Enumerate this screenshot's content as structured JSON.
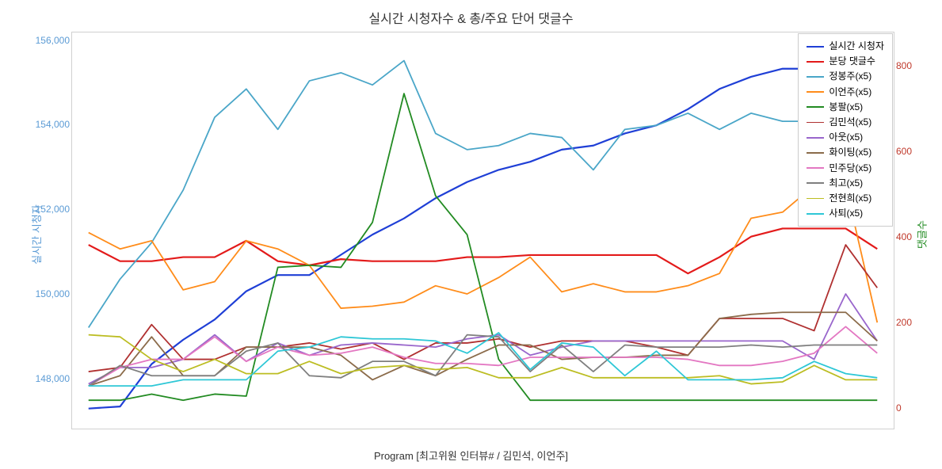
{
  "chart": {
    "title": "실시간 시청자수 & 총/주요 단어 댓글수",
    "xaxis_label": "Program [최고위원  인터뷰# / 김민석, 이언주]",
    "yaxis_left_label": "실시간 시청자",
    "yaxis_right_label": "댓글수",
    "title_fontsize": 16,
    "label_fontsize": 13,
    "tick_fontsize": 12,
    "background": "#ffffff",
    "border_color": "#d0d0d0",
    "left_axis": {
      "min": 146800,
      "max": 156200,
      "ticks": [
        148000,
        150000,
        152000,
        154000,
        156000
      ],
      "tick_labels": [
        "148,000",
        "150,000",
        "152,000",
        "154,000",
        "156,000"
      ],
      "color": "#5b9bd5"
    },
    "right_axis": {
      "min": -50,
      "max": 880,
      "ticks": [
        0,
        200,
        400,
        600,
        800
      ],
      "tick_labels": [
        "0",
        "200",
        "400",
        "600",
        "800"
      ],
      "color": "#c0392b"
    },
    "x_points": 26,
    "series": [
      {
        "name": "실시간 시청자",
        "color": "#1f3fd6",
        "width": 2.2,
        "axis": "left",
        "data": [
          147100,
          147150,
          148200,
          148800,
          149300,
          150000,
          150400,
          150400,
          150900,
          151400,
          151800,
          152300,
          152700,
          153000,
          153200,
          153500,
          153600,
          153900,
          154100,
          154500,
          155000,
          155300,
          155500,
          155500,
          155400,
          155500
        ]
      },
      {
        "name": "분당 댓글수",
        "color": "#e31a1a",
        "width": 2.2,
        "axis": "right",
        "data": [
          380,
          340,
          340,
          350,
          350,
          390,
          340,
          330,
          345,
          340,
          340,
          340,
          350,
          350,
          355,
          355,
          355,
          355,
          355,
          310,
          350,
          400,
          420,
          420,
          420,
          370
        ]
      },
      {
        "name": "정봉주(x5)",
        "color": "#4aa6c8",
        "width": 1.8,
        "axis": "left",
        "data": [
          149100,
          150300,
          151200,
          152500,
          154300,
          155000,
          154000,
          155200,
          155400,
          155100,
          155700,
          153900,
          153500,
          153600,
          153900,
          153800,
          153000,
          154000,
          154100,
          154400,
          154000,
          154400,
          154200,
          154200,
          153700,
          154700
        ]
      },
      {
        "name": "이언주(x5)",
        "color": "#ff8c1a",
        "width": 1.8,
        "axis": "right",
        "data": [
          410,
          370,
          390,
          270,
          290,
          390,
          370,
          330,
          225,
          230,
          240,
          280,
          260,
          300,
          350,
          265,
          285,
          265,
          265,
          280,
          310,
          445,
          460,
          525,
          525,
          190
        ]
      },
      {
        "name": "봉팔(x5)",
        "color": "#228b22",
        "width": 1.8,
        "axis": "right",
        "data": [
          0,
          0,
          15,
          0,
          15,
          10,
          325,
          330,
          325,
          435,
          750,
          500,
          405,
          100,
          0,
          0,
          0,
          0,
          0,
          0,
          0,
          0,
          0,
          0,
          0,
          0
        ]
      },
      {
        "name": "김민석(x5)",
        "color": "#b03030",
        "width": 1.8,
        "axis": "right",
        "data": [
          70,
          80,
          185,
          100,
          100,
          130,
          130,
          140,
          125,
          140,
          100,
          140,
          140,
          150,
          130,
          145,
          145,
          145,
          130,
          110,
          200,
          200,
          200,
          170,
          380,
          275
        ]
      },
      {
        "name": "아웃(x5)",
        "color": "#9966cc",
        "width": 1.8,
        "axis": "right",
        "data": [
          40,
          80,
          80,
          100,
          160,
          95,
          140,
          110,
          135,
          140,
          135,
          130,
          150,
          160,
          110,
          130,
          145,
          145,
          145,
          145,
          145,
          145,
          145,
          100,
          260,
          145
        ]
      },
      {
        "name": "화이팅(x5)",
        "color": "#8b6b4a",
        "width": 1.8,
        "axis": "right",
        "data": [
          35,
          60,
          155,
          60,
          60,
          130,
          130,
          130,
          110,
          50,
          85,
          60,
          100,
          135,
          135,
          100,
          105,
          105,
          110,
          110,
          200,
          210,
          215,
          215,
          215,
          145
        ]
      },
      {
        "name": "민주당(x5)",
        "color": "#e377c2",
        "width": 1.8,
        "axis": "right",
        "data": [
          35,
          80,
          100,
          100,
          155,
          95,
          130,
          110,
          115,
          130,
          105,
          90,
          90,
          85,
          105,
          105,
          105,
          105,
          105,
          100,
          85,
          85,
          95,
          115,
          180,
          115
        ]
      },
      {
        "name": "최고(x5)",
        "color": "#7f7f7f",
        "width": 1.8,
        "axis": "right",
        "data": [
          35,
          85,
          60,
          60,
          60,
          120,
          140,
          60,
          55,
          95,
          95,
          60,
          160,
          155,
          70,
          135,
          70,
          135,
          130,
          130,
          130,
          135,
          130,
          135,
          135,
          135
        ]
      },
      {
        "name": "전현희(x5)",
        "color": "#bcbd22",
        "width": 1.8,
        "axis": "right",
        "data": [
          160,
          155,
          100,
          70,
          100,
          65,
          65,
          95,
          65,
          80,
          85,
          75,
          80,
          55,
          55,
          80,
          55,
          55,
          55,
          55,
          60,
          40,
          45,
          85,
          50,
          50
        ]
      },
      {
        "name": "사퇴(x5)",
        "color": "#2ec7d6",
        "width": 1.8,
        "axis": "right",
        "data": [
          35,
          35,
          35,
          50,
          50,
          50,
          120,
          130,
          155,
          150,
          150,
          145,
          115,
          165,
          75,
          140,
          130,
          60,
          120,
          50,
          50,
          50,
          55,
          95,
          65,
          55
        ]
      }
    ],
    "legend": {
      "bg": "#ffffff",
      "border": "#cccccc",
      "items": [
        "실시간 시청자",
        "분당 댓글수",
        "정봉주(x5)",
        "이언주(x5)",
        "봉팔(x5)",
        "김민석(x5)",
        "아웃(x5)",
        "화이팅(x5)",
        "민주당(x5)",
        "최고(x5)",
        "전현희(x5)",
        "사퇴(x5)"
      ]
    }
  }
}
